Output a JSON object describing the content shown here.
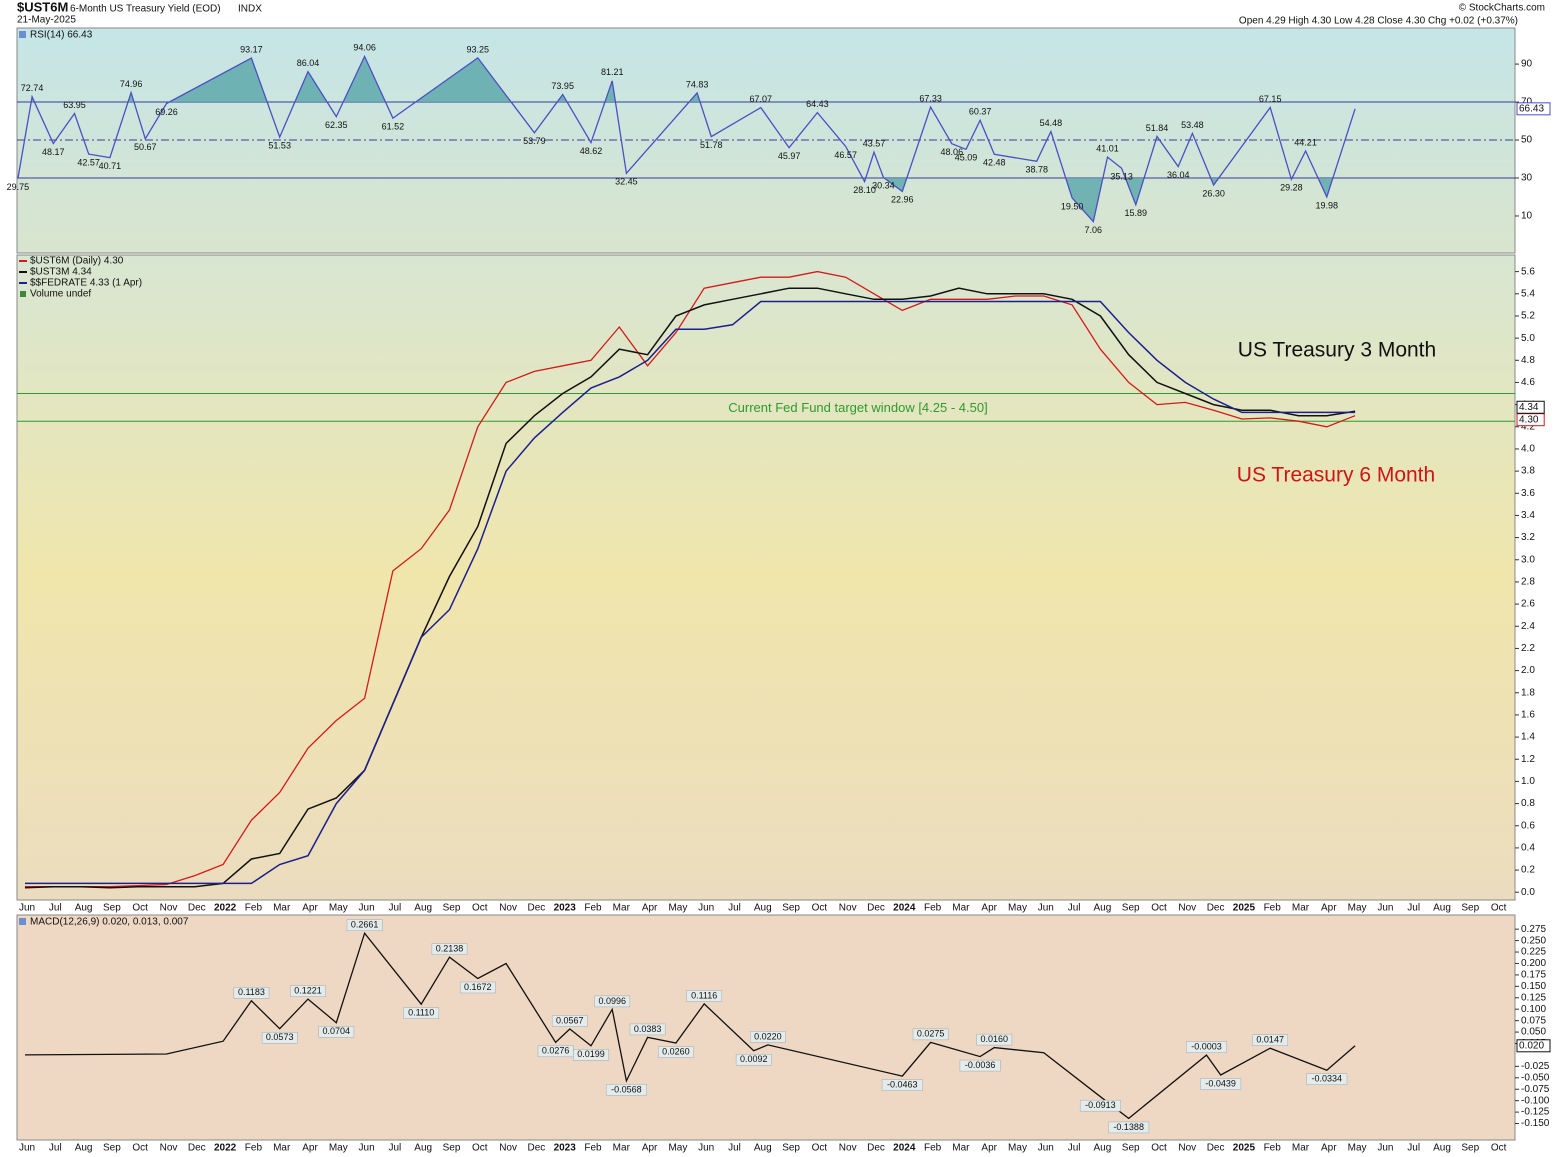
{
  "header": {
    "symbol": "$UST6M",
    "name": "6-Month US Treasury Yield (EOD)",
    "exchange": "INDX",
    "date": "21-May-2025",
    "quote": "Open 4.29 High 4.30 Low 4.28 Close 4.30 Chg +0.02 (+0.37%)",
    "credit": "© StockCharts.com"
  },
  "chart_data": [
    {
      "type": "line",
      "title": "RSI(14) 66.43",
      "color": "#4b4fc4",
      "fill_color": "#5fa9ab",
      "ylim": [
        -9.5,
        109
      ],
      "yticks": [
        10,
        30,
        50,
        70,
        90
      ],
      "hlines": [
        30,
        70
      ],
      "midline": 50,
      "x": [
        "2021-06",
        "2021-06",
        "2021-07",
        "2021-08",
        "2021-08",
        "2021-09",
        "2021-10",
        "2021-10",
        "2021-11",
        "2022-02",
        "2022-03",
        "2022-04",
        "2022-05",
        "2022-06",
        "2022-07",
        "2022-10",
        "2022-12",
        "2023-01",
        "2023-02",
        "2023-03",
        "2023-03",
        "2023-06",
        "2023-06",
        "2023-08",
        "2023-09",
        "2023-10",
        "2023-11",
        "2023-12",
        "2023-12",
        "2023-12",
        "2024-01",
        "2024-02",
        "2024-03",
        "2024-03",
        "2024-04",
        "2024-04",
        "2024-06",
        "2024-06",
        "2024-07",
        "2024-08",
        "2024-08",
        "2024-09",
        "2024-09",
        "2024-10",
        "2024-11",
        "2024-11",
        "2024-12",
        "2025-02",
        "2025-03",
        "2025-03",
        "2025-04",
        "2025-05"
      ],
      "values": [
        29.75,
        72.74,
        48.17,
        63.95,
        42.57,
        40.71,
        74.96,
        50.67,
        69.26,
        93.17,
        51.53,
        86.04,
        62.35,
        94.06,
        61.52,
        93.25,
        53.79,
        73.95,
        48.62,
        81.21,
        32.45,
        74.83,
        51.78,
        67.07,
        45.97,
        64.43,
        46.57,
        28.1,
        43.57,
        30.34,
        22.96,
        67.33,
        48.06,
        45.09,
        60.37,
        42.48,
        38.78,
        54.48,
        19.5,
        7.06,
        41.01,
        35.13,
        15.89,
        51.84,
        36.04,
        53.48,
        26.3,
        67.15,
        29.28,
        44.21,
        19.98,
        66.43
      ],
      "value_labels": [
        "29.75",
        "72.74",
        "48.17",
        "63.95",
        "42.57",
        "40.71",
        "74.96",
        "50.67",
        "69.26",
        "93.17",
        "51.53",
        "86.04",
        "62.35",
        "94.06",
        "61.52",
        "93.25",
        "53.79",
        "73.95",
        "48.62",
        "81.21",
        "32.45",
        "74.83",
        "51.78",
        "67.07",
        "45.97",
        "64.43",
        "46.57",
        "28.10",
        "43.57",
        "30.34",
        "22.96",
        "67.33",
        "48.06",
        "45.09",
        "60.37",
        "42.48",
        "38.78",
        "54.48",
        "19.50",
        "7.06",
        "41.01",
        "35.13",
        "15.89",
        "51.84",
        "36.04",
        "53.48",
        "26.30",
        "67.15",
        "29.28",
        "44.21",
        "19.98",
        "66.43"
      ]
    },
    {
      "type": "line",
      "categories": [
        "Jun",
        "Jul",
        "Aug",
        "Sep",
        "Oct",
        "Nov",
        "Dec",
        "2022",
        "Feb",
        "Mar",
        "Apr",
        "May",
        "Jun",
        "Jul",
        "Aug",
        "Sep",
        "Oct",
        "Nov",
        "Dec",
        "2023",
        "Feb",
        "Mar",
        "Apr",
        "May",
        "Jun",
        "Jul",
        "Aug",
        "Sep",
        "Oct",
        "Nov",
        "Dec",
        "2024",
        "Feb",
        "Mar",
        "Apr",
        "May",
        "Jun",
        "Jul",
        "Aug",
        "Sep",
        "Oct",
        "Nov",
        "Dec",
        "2025",
        "Feb",
        "Mar",
        "Apr",
        "May",
        "Jun",
        "Jul",
        "Aug",
        "Sep",
        "Oct"
      ],
      "ylim": [
        -0.07,
        5.75
      ],
      "yticks": [
        {
          "value": 0,
          "label": "0.0"
        },
        0.2,
        0.4,
        0.6,
        0.8,
        {
          "value": 1,
          "label": "1.0"
        },
        1.2,
        1.4,
        1.6,
        1.8,
        {
          "value": 2,
          "label": "2.0"
        },
        2.2,
        2.4,
        2.6,
        2.8,
        {
          "value": 3,
          "label": "3.0"
        },
        3.2,
        3.4,
        3.6,
        3.8,
        {
          "value": 4,
          "label": "4.0"
        },
        4.2,
        4.4,
        4.6,
        4.8,
        {
          "value": 5,
          "label": "5.0"
        },
        5.2,
        5.4,
        5.6
      ],
      "hlines": [
        4.25,
        4.5
      ],
      "hline_color": "#2f9a2f",
      "hline_label": "Current Fed Fund target window [4.25 - 4.50]",
      "annotations": [
        {
          "text": "US Treasury 3 Month",
          "color": "#111111"
        },
        {
          "text": "US Treasury 6 Month",
          "color": "#d01414"
        }
      ],
      "volume_note": "Volume undef",
      "series": [
        {
          "name": "$UST6M (Daily) 4.30",
          "color": "#d41a1a",
          "values": [
            0.05,
            0.05,
            0.05,
            0.05,
            0.06,
            0.07,
            0.15,
            0.25,
            0.65,
            0.9,
            1.3,
            1.55,
            1.75,
            2.9,
            3.1,
            3.45,
            4.2,
            4.6,
            4.7,
            4.75,
            4.8,
            5.1,
            4.75,
            5.05,
            5.45,
            5.5,
            5.55,
            5.55,
            5.6,
            5.55,
            5.4,
            5.25,
            5.35,
            5.35,
            5.35,
            5.38,
            5.38,
            5.3,
            4.9,
            4.6,
            4.4,
            4.42,
            4.35,
            4.27,
            4.28,
            4.25,
            4.2,
            4.3,
            null,
            null,
            null,
            null,
            null
          ],
          "value_labels": [
            null,
            null,
            null,
            null,
            null,
            null,
            null,
            null,
            null,
            null,
            null,
            null,
            null,
            null,
            null,
            null,
            null,
            null,
            null,
            null,
            null,
            null,
            null,
            null,
            null,
            null,
            null,
            null,
            null,
            null,
            null,
            null,
            null,
            null,
            null,
            null,
            null,
            null,
            null,
            null,
            null,
            null,
            null,
            null,
            null,
            null,
            null,
            "4.30",
            null,
            null,
            null,
            null,
            null
          ]
        },
        {
          "name": "$UST3M 4.34",
          "color": "#111111",
          "values": [
            0.04,
            0.05,
            0.05,
            0.04,
            0.05,
            0.05,
            0.05,
            0.08,
            0.3,
            0.35,
            0.75,
            0.85,
            1.1,
            1.7,
            2.3,
            2.85,
            3.3,
            4.05,
            4.3,
            4.5,
            4.65,
            4.9,
            4.85,
            5.2,
            5.3,
            5.35,
            5.4,
            5.45,
            5.45,
            5.4,
            5.35,
            5.35,
            5.38,
            5.45,
            5.4,
            5.4,
            5.4,
            5.35,
            5.2,
            4.85,
            4.6,
            4.5,
            4.4,
            4.35,
            4.35,
            4.3,
            4.3,
            4.34,
            null,
            null,
            null,
            null,
            null
          ],
          "value_labels": [
            null,
            null,
            null,
            null,
            null,
            null,
            null,
            null,
            null,
            null,
            null,
            null,
            null,
            null,
            null,
            null,
            null,
            null,
            null,
            null,
            null,
            null,
            null,
            null,
            null,
            null,
            null,
            null,
            null,
            null,
            null,
            null,
            null,
            null,
            null,
            null,
            null,
            null,
            null,
            null,
            null,
            null,
            null,
            null,
            null,
            null,
            null,
            "4.34",
            null,
            null,
            null,
            null,
            null
          ]
        },
        {
          "name": "$$FEDRATE 4.33 (1 Apr)",
          "color": "#1b1f8f",
          "values": [
            0.08,
            0.08,
            0.08,
            0.08,
            0.08,
            0.08,
            0.08,
            0.08,
            0.08,
            0.25,
            0.33,
            0.8,
            1.1,
            1.7,
            2.3,
            2.55,
            3.1,
            3.8,
            4.1,
            4.33,
            4.55,
            4.65,
            4.8,
            5.08,
            5.08,
            5.12,
            5.33,
            5.33,
            5.33,
            5.33,
            5.33,
            5.33,
            5.33,
            5.33,
            5.33,
            5.33,
            5.33,
            5.33,
            5.33,
            5.05,
            4.8,
            4.6,
            4.45,
            4.33,
            4.33,
            4.33,
            4.33,
            4.33,
            null,
            null,
            null,
            null,
            null
          ]
        }
      ]
    },
    {
      "type": "line",
      "title": "MACD(12,26,9) 0.020, 0.013, 0.007",
      "color": "#111111",
      "categories": [
        "Jun",
        "Jul",
        "Aug",
        "Sep",
        "Oct",
        "Nov",
        "Dec",
        "2022",
        "Feb",
        "Mar",
        "Apr",
        "May",
        "Jun",
        "Jul",
        "Aug",
        "Sep",
        "Oct",
        "Nov",
        "Dec",
        "2023",
        "Feb",
        "Mar",
        "Apr",
        "May",
        "Jun",
        "Jul",
        "Aug",
        "Sep",
        "Oct",
        "Nov",
        "Dec",
        "2024",
        "Feb",
        "Mar",
        "Apr",
        "May",
        "Jun",
        "Jul",
        "Aug",
        "Sep",
        "Oct",
        "Nov",
        "Dec",
        "2025",
        "Feb",
        "Mar",
        "Apr",
        "May",
        "Jun",
        "Jul",
        "Aug",
        "Sep",
        "Oct"
      ],
      "ylim": [
        -0.186,
        0.306
      ],
      "yticks": [
        {
          "value": 0.275,
          "label": "0.275"
        },
        {
          "value": 0.25,
          "label": "0.250"
        },
        {
          "value": 0.225,
          "label": "0.225"
        },
        {
          "value": 0.2,
          "label": "0.200"
        },
        {
          "value": 0.175,
          "label": "0.175"
        },
        {
          "value": 0.15,
          "label": "0.150"
        },
        {
          "value": 0.125,
          "label": "0.125"
        },
        {
          "value": 0.1,
          "label": "0.100"
        },
        {
          "value": 0.075,
          "label": "0.075"
        },
        {
          "value": 0.05,
          "label": "0.050"
        },
        {
          "value": 0.025,
          "label": "0.025"
        },
        {
          "value": -0.025,
          "label": "-0.025"
        },
        {
          "value": -0.05,
          "label": "-0.050"
        },
        {
          "value": -0.075,
          "label": "-0.075"
        },
        {
          "value": -0.1,
          "label": "-0.100"
        },
        {
          "value": -0.125,
          "label": "-0.125"
        },
        {
          "value": -0.15,
          "label": "-0.150"
        }
      ],
      "x": [
        "2021-06",
        "2021-11",
        "2022-01",
        "2022-02",
        "2022-03",
        "2022-04",
        "2022-05",
        "2022-06",
        "2022-08",
        "2022-09",
        "2022-10",
        "2022-11",
        "2023-01",
        "2023-01",
        "2023-02",
        "2023-03",
        "2023-03",
        "2023-04",
        "2023-05",
        "2023-06",
        "2023-08",
        "2023-08",
        "2024-01",
        "2024-02",
        "2024-04",
        "2024-04",
        "2024-06",
        "2024-08",
        "2024-09",
        "2024-12",
        "2024-12",
        "2025-02",
        "2025-04",
        "2025-05"
      ],
      "values": [
        0,
        0.002,
        0.03,
        0.1183,
        0.0573,
        0.1221,
        0.0704,
        0.2661,
        0.111,
        0.2138,
        0.1672,
        0.2,
        0.0276,
        0.0567,
        0.0199,
        0.0996,
        -0.0568,
        0.0383,
        0.026,
        0.1116,
        0.0092,
        0.022,
        -0.0463,
        0.0275,
        -0.0036,
        0.016,
        0.005,
        -0.0913,
        -0.1388,
        -0.0003,
        -0.0439,
        0.0147,
        -0.0334,
        0.02
      ],
      "value_labels": [
        null,
        null,
        null,
        "0.1183",
        "0.0573",
        "0.1221",
        "0.0704",
        "0.2661",
        "0.1110",
        "0.2138",
        "0.1672",
        null,
        "0.0276",
        "0.0567",
        "0.0199",
        "0.0996",
        "-0.0568",
        "0.0383",
        "0.0260",
        "0.1116",
        "0.0092",
        "0.0220",
        "-0.0463",
        "0.0275",
        "-0.0036",
        "0.0160",
        null,
        "-0.0913",
        "-0.1388",
        "-0.0003",
        "-0.0439",
        "0.0147",
        "-0.0334",
        "0.020"
      ]
    }
  ]
}
